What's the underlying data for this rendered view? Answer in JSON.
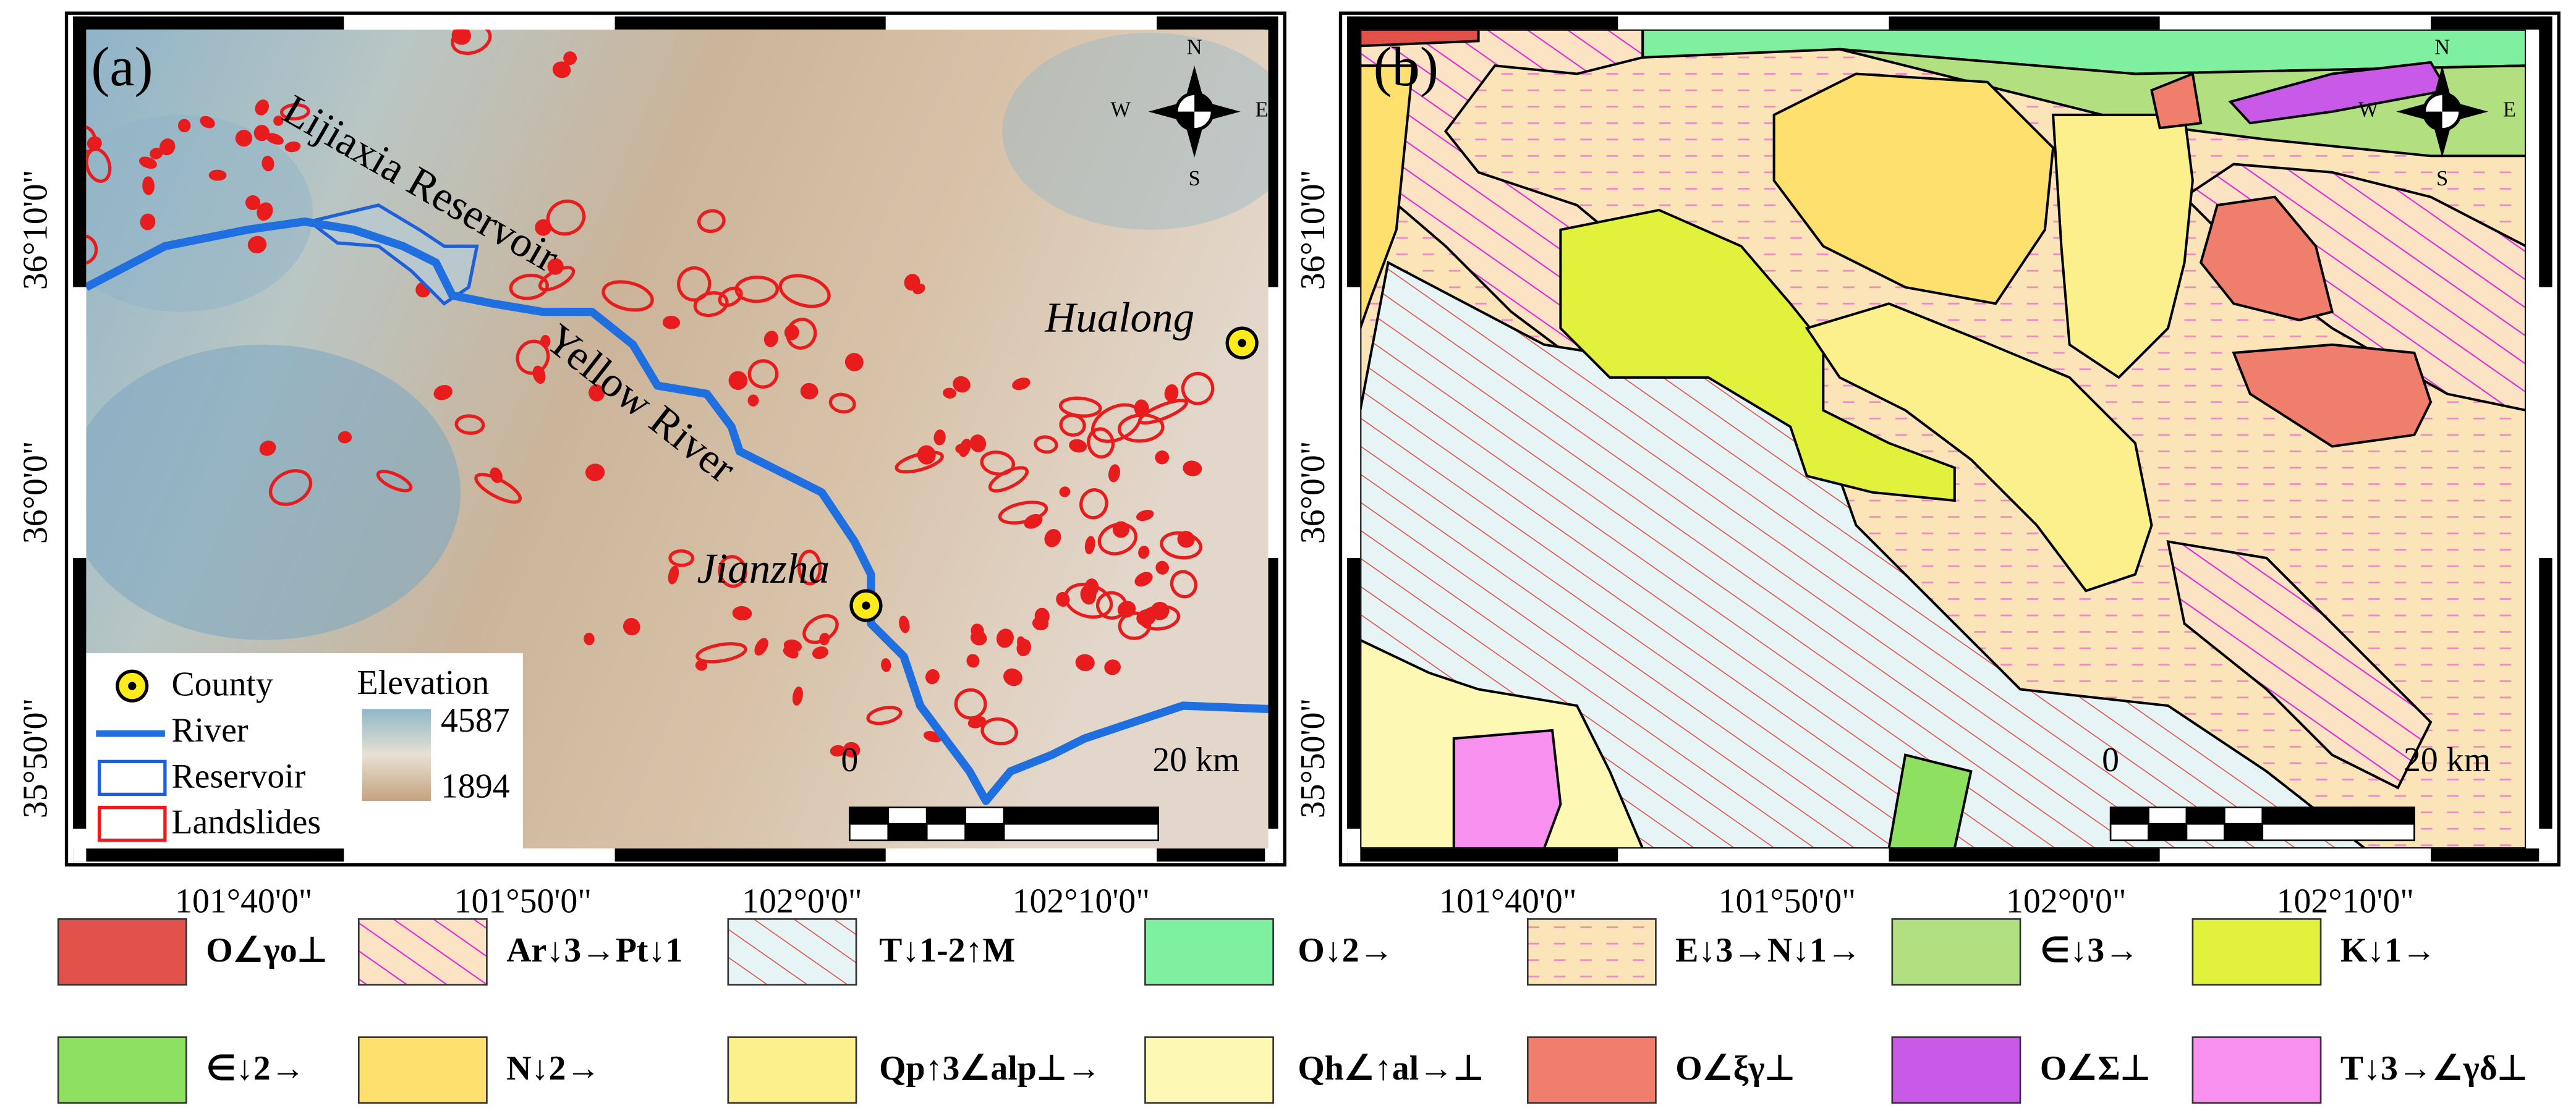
{
  "panel_a": {
    "label": "(a)",
    "places": [
      "Lijiaxia Reservoir",
      "Yellow River",
      "Hualong",
      "Jianzha"
    ],
    "compass": [
      "N",
      "S",
      "W",
      "E"
    ],
    "legend": {
      "items": [
        "County",
        "River",
        "Reservoir",
        "Landslides"
      ],
      "elevation_title": "Elevation",
      "elevation_max": 4587,
      "elevation_min": 1894
    },
    "scale": [
      "0",
      "20 km"
    ]
  },
  "panel_b": {
    "label": "(b)",
    "compass": [
      "N",
      "S",
      "W",
      "E"
    ],
    "scale": [
      "0",
      "20 km"
    ]
  },
  "axes": {
    "lon": [
      "101°40'0\"",
      "101°50'0\"",
      "102°0'0\"",
      "102°10'0\""
    ],
    "lat": [
      "36°10'0\"",
      "36°0'0\"",
      "35°50'0\""
    ]
  },
  "geology_legend": [
    {
      "label": "O∠γo⊥",
      "color": "#e2504a"
    },
    {
      "label": "Ar↓3→Pt↓1",
      "color": "#fbe3c4"
    },
    {
      "label": "T↓1-2↑M",
      "color": "#e6f4f6"
    },
    {
      "label": "O↓2→",
      "color": "#7ff0a0"
    },
    {
      "label": "E↓3→N↓1→",
      "color": "#fbe4b8"
    },
    {
      "label": "∈↓3→",
      "color": "#b2e080"
    },
    {
      "label": "K↓1→",
      "color": "#e2f23c"
    },
    {
      "label": "∈↓2→",
      "color": "#8ee060"
    },
    {
      "label": "N↓2→",
      "color": "#fde06e"
    },
    {
      "label": "Qp↑3∠alp⊥→",
      "color": "#fbf08c"
    },
    {
      "label": "Qh∠↑al→⊥",
      "color": "#fdf8b4"
    },
    {
      "label": "O∠ξγ⊥",
      "color": "#ef7e6c"
    },
    {
      "label": "O∠Σ⊥",
      "color": "#c95ae8"
    },
    {
      "label": "T↓3→∠γδ⊥",
      "color": "#f890f0"
    }
  ]
}
